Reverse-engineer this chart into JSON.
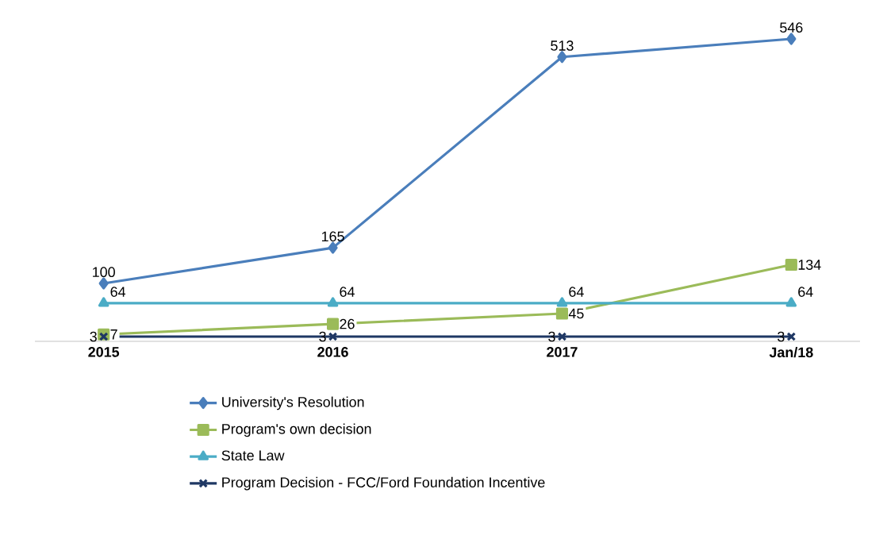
{
  "chart_data": {
    "type": "line",
    "categories": [
      "2015",
      "2016",
      "2017",
      "Jan/18"
    ],
    "data_labels": true,
    "legend": "bottom",
    "grid": false,
    "series": [
      {
        "name": "University's Resolution",
        "color": "#4a7ebb",
        "marker": "diamond",
        "values": [
          100,
          165,
          513,
          546
        ]
      },
      {
        "name": "Program's own decision",
        "color": "#9bbb59",
        "marker": "square",
        "values": [
          7,
          26,
          45,
          134
        ]
      },
      {
        "name": "State Law",
        "color": "#4bacc6",
        "marker": "triangle",
        "values": [
          64,
          64,
          64,
          64
        ]
      },
      {
        "name": "Program Decision - FCC/Ford Foundation Incentive",
        "color": "#1f3864",
        "marker": "cross",
        "values": [
          3,
          3,
          3,
          3
        ]
      }
    ]
  }
}
